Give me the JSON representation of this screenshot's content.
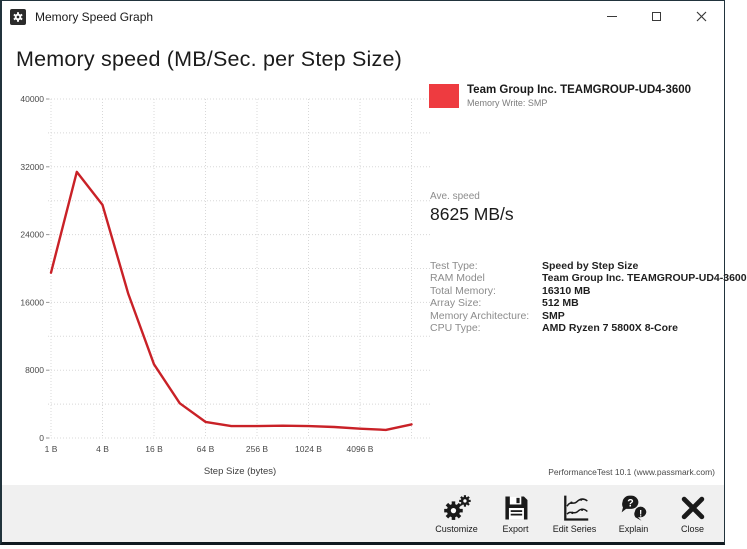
{
  "window": {
    "title": "Memory Speed Graph"
  },
  "chart_data": {
    "type": "line",
    "title": "Memory speed (MB/Sec. per Step Size)",
    "xlabel": "Step Size (bytes)",
    "x_scale": "log2",
    "x": [
      1,
      2,
      4,
      8,
      16,
      32,
      64,
      128,
      256,
      512,
      1024,
      2048,
      4096,
      8192,
      16384
    ],
    "values": [
      19500,
      31400,
      27500,
      17000,
      8700,
      4100,
      1900,
      1400,
      1400,
      1450,
      1400,
      1300,
      1100,
      950,
      1600
    ],
    "x_tick_labels": [
      "1 B",
      "4 B",
      "16 B",
      "64 B",
      "256 B",
      "1024 B",
      "4096 B"
    ],
    "y_ticks": [
      0,
      8000,
      16000,
      24000,
      32000,
      40000
    ],
    "ylim": [
      0,
      40000
    ],
    "grid_step": 4000,
    "grid": "dotted",
    "line_color": "#c92127",
    "legend_position": "right-panel"
  },
  "legend": {
    "swatch_color": "#ee3b40",
    "series_name": "Team Group Inc. TEAMGROUP-UD4-3600",
    "series_subtitle": "Memory Write: SMP"
  },
  "ave_speed": {
    "label": "Ave. speed",
    "value": "8625 MB/s"
  },
  "info": {
    "rows": [
      {
        "label": "Test Type:",
        "value": "Speed by Step Size"
      },
      {
        "label": "RAM Model",
        "value": "Team Group Inc. TEAMGROUP-UD4-3600"
      },
      {
        "label": "Total Memory:",
        "value": "16310 MB"
      },
      {
        "label": "Array Size:",
        "value": "512 MB"
      },
      {
        "label": "Memory Architecture:",
        "value": "SMP"
      },
      {
        "label": "CPU Type:",
        "value": "AMD Ryzen 7 5800X 8-Core"
      }
    ]
  },
  "footer": {
    "credit": "PerformanceTest 10.1 (www.passmark.com)"
  },
  "toolbar": {
    "buttons": [
      {
        "label": "Customize",
        "icon": "gears-icon"
      },
      {
        "label": "Export",
        "icon": "floppy-disk-icon"
      },
      {
        "label": "Edit Series",
        "icon": "line-chart-icon"
      },
      {
        "label": "Explain",
        "icon": "speech-bubbles-icon"
      },
      {
        "label": "Close",
        "icon": "x-icon"
      }
    ]
  }
}
